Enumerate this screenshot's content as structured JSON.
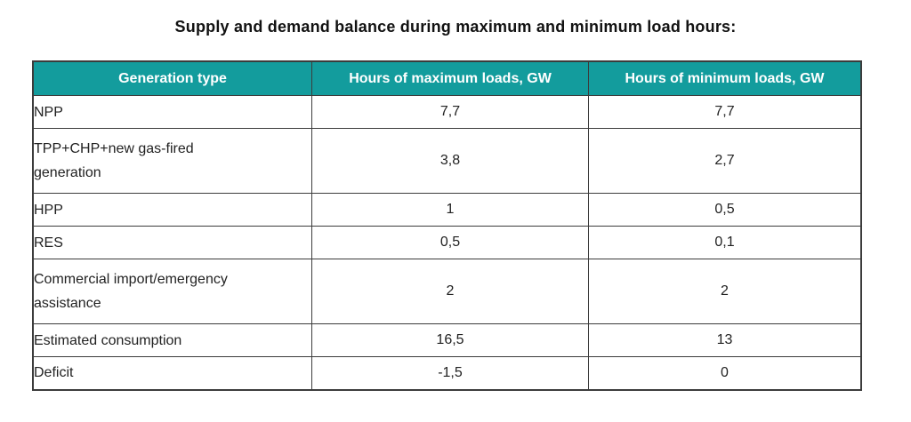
{
  "title": "Supply and demand balance during maximum and minimum load hours:",
  "colors": {
    "header_bg": "#139c9d",
    "header_text": "#ffffff",
    "border": "#3c3c3c",
    "body_text": "#222222",
    "page_bg": "#ffffff"
  },
  "table": {
    "headers": [
      "Generation type",
      "Hours of maximum loads, GW",
      "Hours of minimum loads, GW"
    ],
    "rows": [
      {
        "generation_type": "NPP",
        "max_load": "7,7",
        "min_load": "7,7"
      },
      {
        "generation_type": "TPP+CHP+new gas-fired generation",
        "max_load": "3,8",
        "min_load": "2,7"
      },
      {
        "generation_type": "HPP",
        "max_load": "1",
        "min_load": "0,5"
      },
      {
        "generation_type": "RES",
        "max_load": "0,5",
        "min_load": "0,1"
      },
      {
        "generation_type": "Commercial import/emergency assistance",
        "max_load": "2",
        "min_load": "2"
      },
      {
        "generation_type": "Estimated consumption",
        "max_load": "16,5",
        "min_load": "13"
      },
      {
        "generation_type": "Deficit",
        "max_load": "-1,5",
        "min_load": "0"
      }
    ]
  }
}
